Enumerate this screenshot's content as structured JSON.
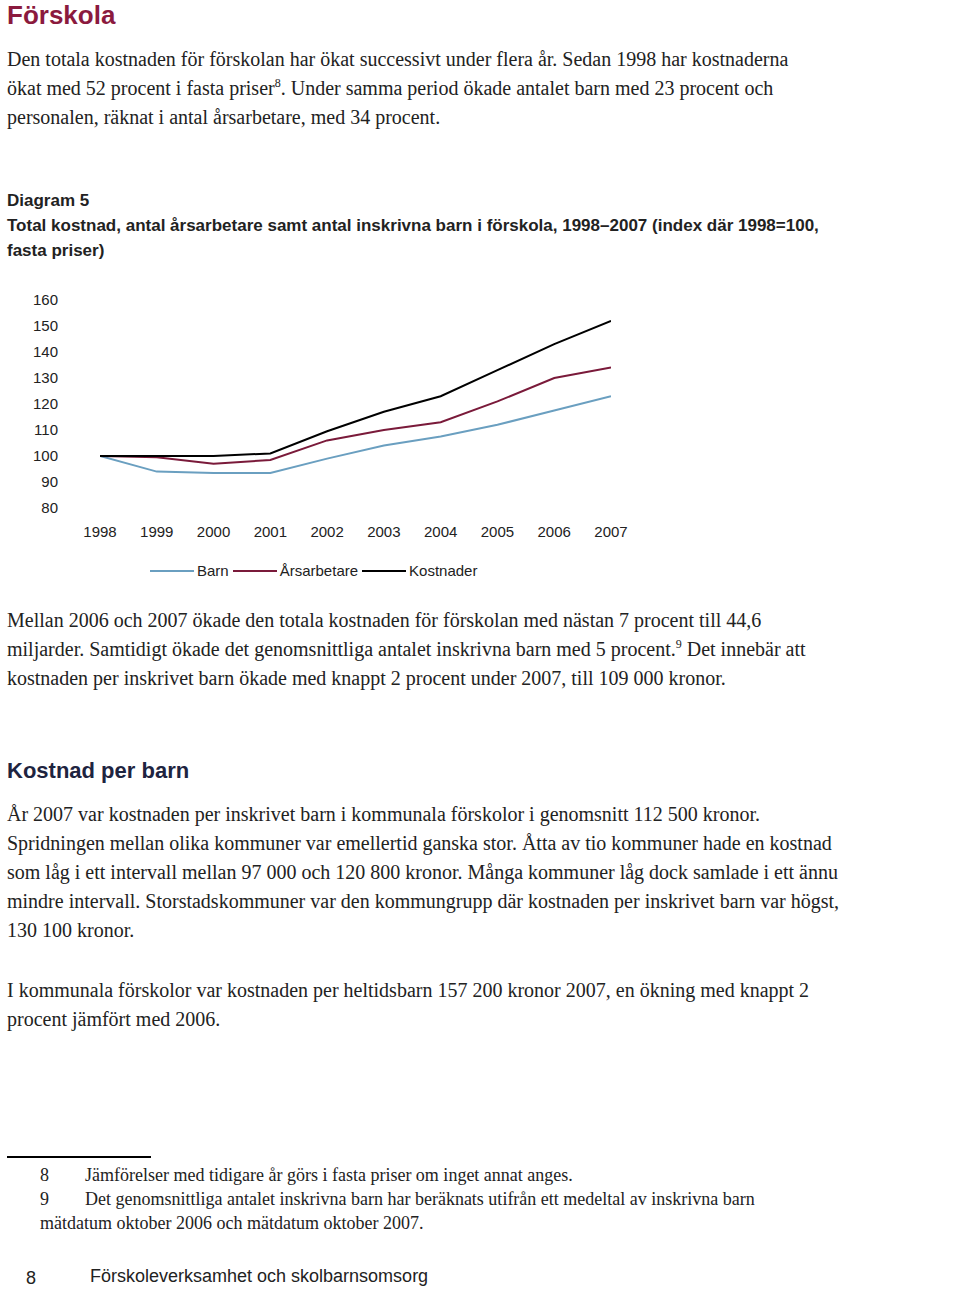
{
  "heading": "Förskola",
  "intro": [
    "Den totala kostnaden för förskolan har ökat successivt under flera år. Sedan 1998 har kostnaderna ökat med 52 procent i fasta priser",
    {
      "sup": "8"
    },
    ". Under samma period ökade antalet barn med 23 procent och personalen, räknat i antal årsarbetare, med 34 procent."
  ],
  "chart_data": {
    "type": "line",
    "title": "Diagram 5",
    "subtitle": "Total kostnad, antal årsarbetare samt antal inskrivna barn i förskola, 1998–2007 (index där 1998=100, fasta priser)",
    "x": [
      1998,
      1999,
      2000,
      2001,
      2002,
      2003,
      2004,
      2005,
      2006,
      2007
    ],
    "xlim": [
      1998,
      2007
    ],
    "xticks": [
      1998,
      1999,
      2000,
      2001,
      2002,
      2003,
      2004,
      2005,
      2006,
      2007
    ],
    "ylim": [
      80,
      160
    ],
    "yticks": [
      80,
      90,
      100,
      110,
      120,
      130,
      140,
      150,
      160
    ],
    "grid": false,
    "series": [
      {
        "name": "Barn",
        "color": "#6a9fc0",
        "values": [
          100,
          94,
          93.5,
          93.5,
          99,
          104,
          107.5,
          112,
          117.5,
          123
        ]
      },
      {
        "name": "Årsarbetare",
        "color": "#7a1a3a",
        "values": [
          100,
          99.5,
          97,
          98.5,
          106,
          110,
          113,
          121,
          130,
          134
        ]
      },
      {
        "name": "Kostnader",
        "color": "#000000",
        "values": [
          100,
          100,
          100,
          101,
          109.5,
          117,
          123,
          133,
          143,
          152
        ]
      }
    ]
  },
  "paragraph_after_chart": [
    "Mellan 2006 och 2007 ökade den totala kostnaden för förskolan med nästan 7 procent till 44,6 miljarder. Samtidigt ökade det genomsnittliga antalet inskrivna barn med 5 procent.",
    {
      "sup": "9"
    },
    " Det innebär att kostnaden per inskrivet barn ökade med knappt 2 procent under 2007, till 109 000 kronor."
  ],
  "section": {
    "heading": "Kostnad per barn",
    "paragraphs": [
      [
        "År 2007 var kostnaden per inskrivet barn i kommunala förskolor i genomsnitt 112 500 kronor. Spridningen mellan olika kommuner var emellertid ganska stor. Åtta av tio kommuner hade en kostnad som låg i ett intervall mellan 97 000 och 120 800 kronor. Många kommuner låg dock samlade i ett ännu mindre intervall. Storstadskommuner var den kommungrupp där kostnaden per inskrivet barn var högst, 130 100 kronor."
      ],
      [
        "I kommunala förskolor var kostnaden per heltidsbarn 157 200 kronor 2007, en ökning med knappt 2 procent jämfört med 2006."
      ]
    ]
  },
  "footnotes": [
    {
      "number": "8",
      "text": "Jämförelser med tidigare år görs i fasta priser om inget annat anges."
    },
    {
      "number": "9",
      "text": "Det genomsnittliga antalet inskrivna barn har beräknats utifrån ett medeltal av inskrivna barn mätdatum oktober 2006 och mätdatum oktober 2007."
    }
  ],
  "footer": {
    "page": "8",
    "title": "Förskoleverksamhet och skolbarnsomsorg"
  }
}
